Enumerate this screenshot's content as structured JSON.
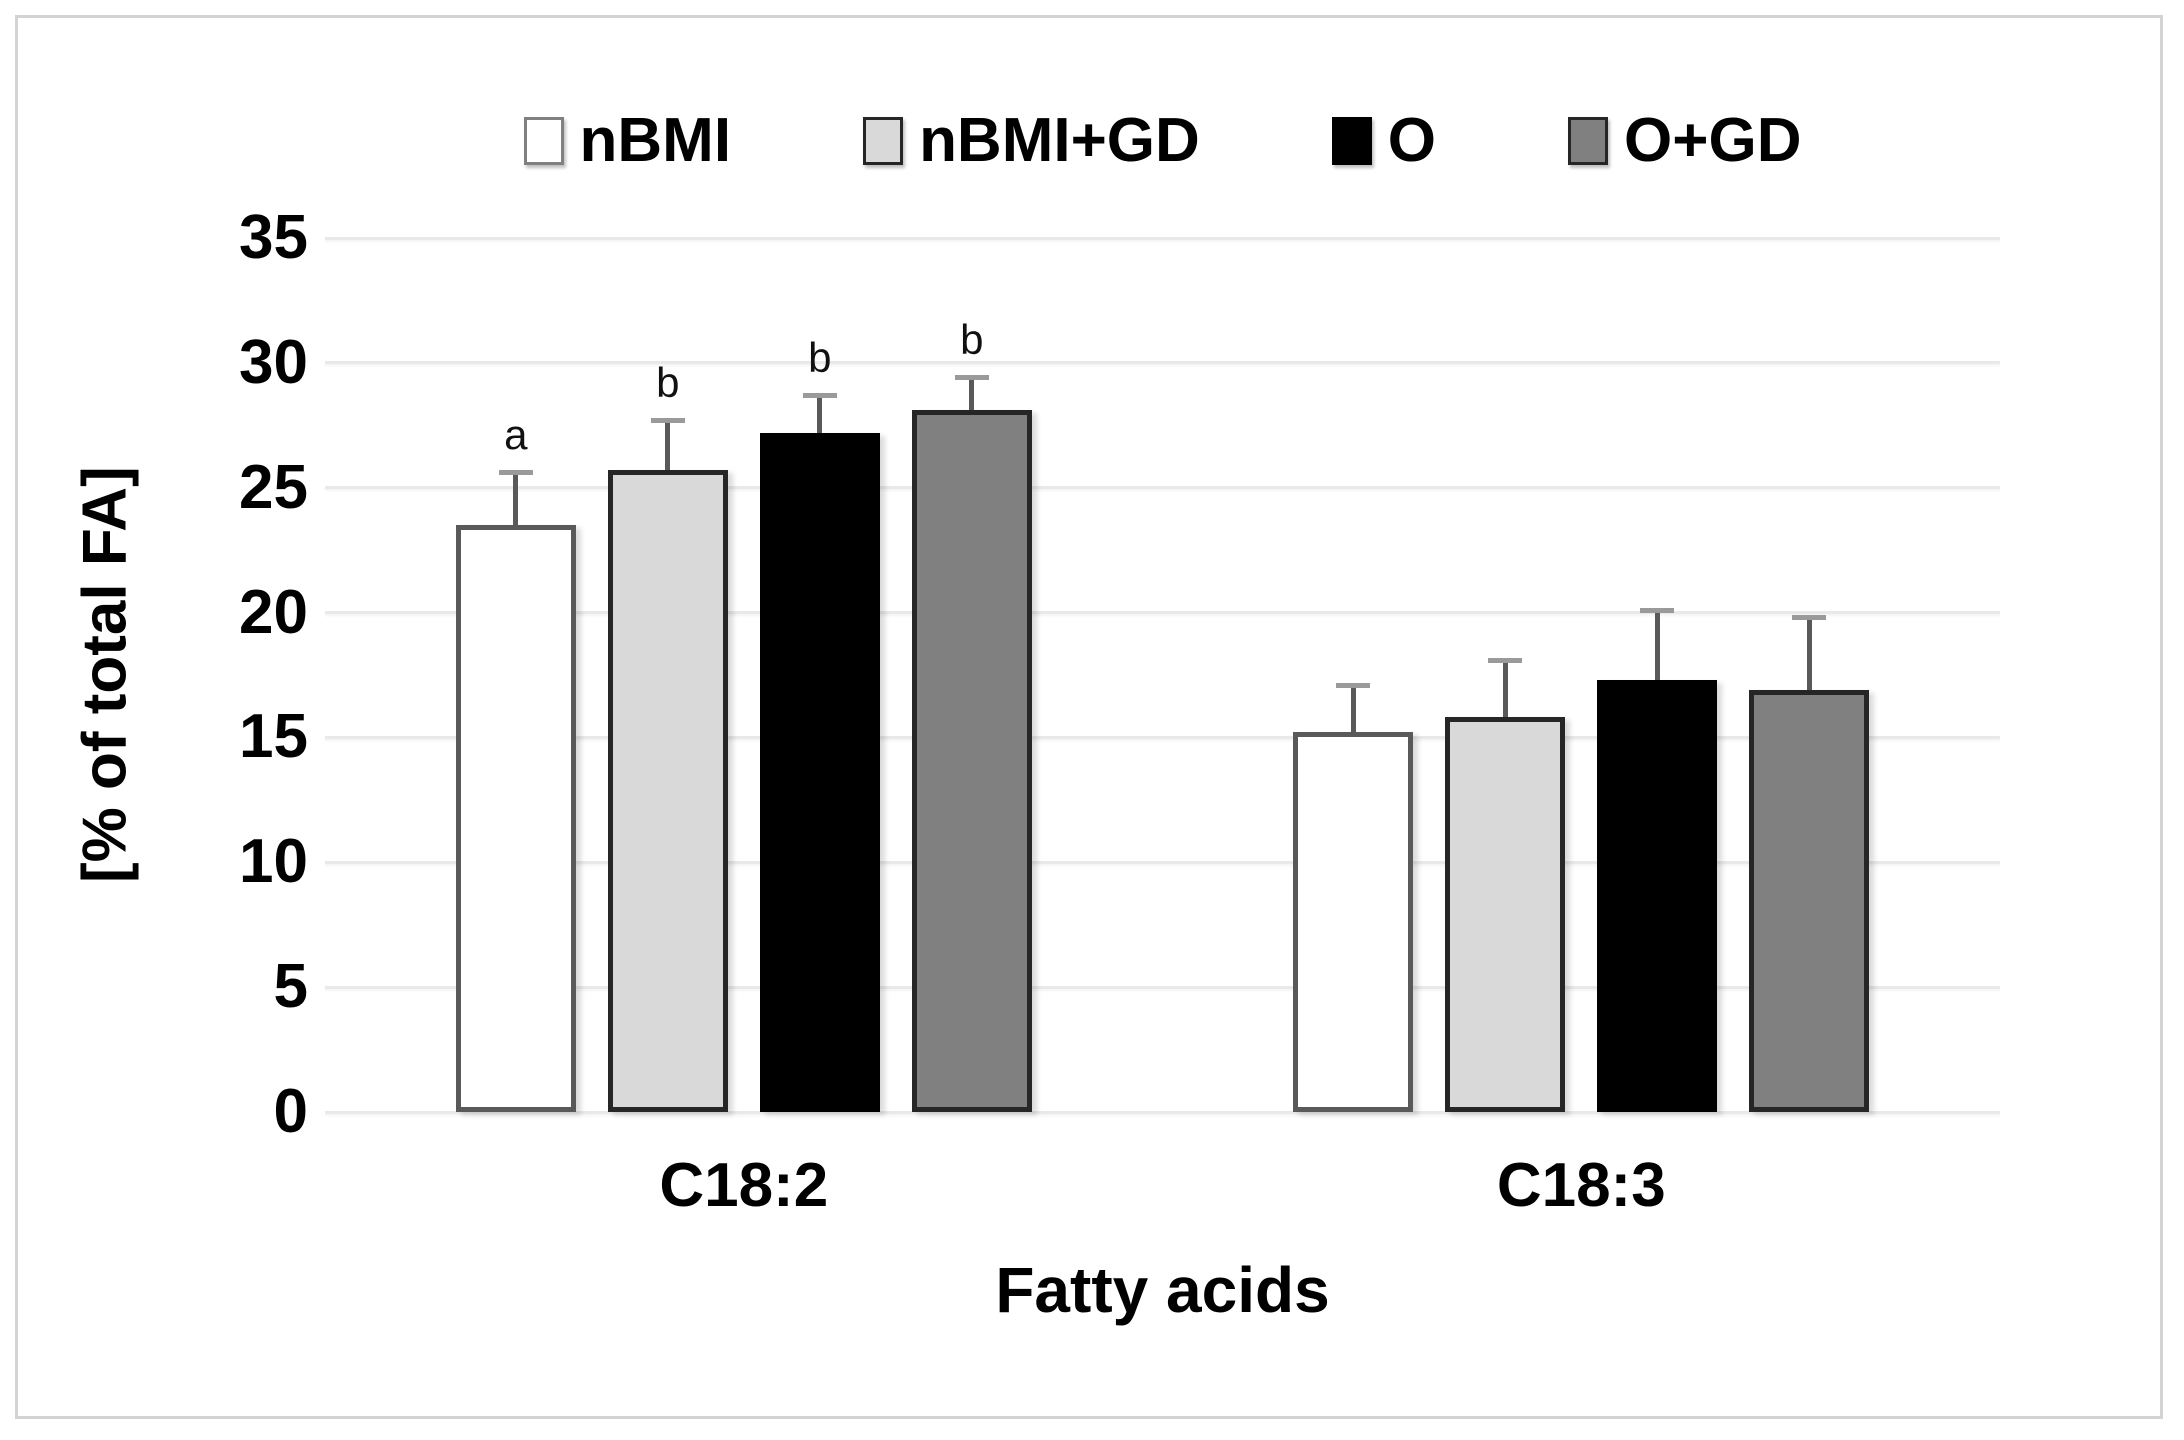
{
  "figure": {
    "background": "#ffffff",
    "frame_color": "#d3d3d3",
    "gridline_color": "#e9e9e9",
    "error_bar_color": "#595959"
  },
  "chart_data": {
    "type": "bar",
    "title": "",
    "categories": [
      "C18:2",
      "C18:3"
    ],
    "series": [
      {
        "name": "nBMI",
        "fill": "#ffffff",
        "border": "#595959",
        "values": [
          23.5,
          15.2
        ],
        "error_plus": [
          2.2,
          2.0
        ],
        "sig_letters": [
          "a",
          ""
        ]
      },
      {
        "name": "nBMI+GD",
        "fill": "#d9d9d9",
        "border": "#262626",
        "values": [
          25.7,
          15.8
        ],
        "error_plus": [
          2.1,
          2.4
        ],
        "sig_letters": [
          "b",
          ""
        ]
      },
      {
        "name": "O",
        "fill": "#000000",
        "border": "#000000",
        "values": [
          27.2,
          17.3
        ],
        "error_plus": [
          1.6,
          2.9
        ],
        "sig_letters": [
          "b",
          ""
        ]
      },
      {
        "name": "O+GD",
        "fill": "#808080",
        "border": "#262626",
        "values": [
          28.1,
          16.9
        ],
        "error_plus": [
          1.4,
          3.0
        ],
        "sig_letters": [
          "b",
          ""
        ]
      }
    ],
    "xlabel": "Fatty acids",
    "ylabel": "[% of total FA]",
    "ylim": [
      0,
      35
    ],
    "yticks": [
      0,
      5,
      10,
      15,
      20,
      25,
      30,
      35
    ],
    "grid": true,
    "error_bars": "plus-only",
    "legend_position": "top"
  }
}
